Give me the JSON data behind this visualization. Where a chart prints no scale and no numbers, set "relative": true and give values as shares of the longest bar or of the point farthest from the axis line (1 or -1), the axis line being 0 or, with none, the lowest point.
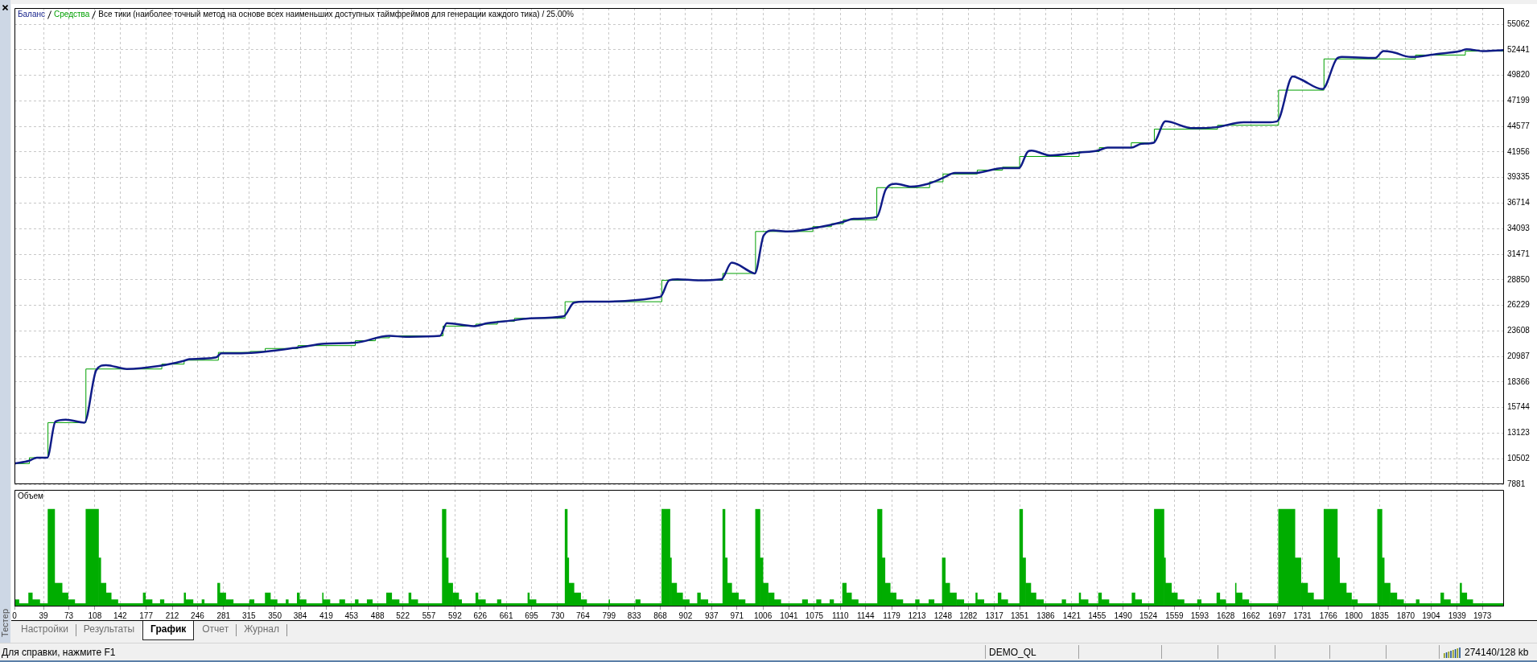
{
  "chart_data": [
    {
      "type": "line",
      "title": "Все тики (наиболее точный метод на основе всех наименьших доступных таймфреймов для генерации каждого тика) / 25.00%",
      "legend": "top left",
      "grid": true,
      "marker": "none",
      "tick_labels": "y",
      "xlim": [
        0,
        2002
      ],
      "xticks": [
        {
          "value": 0,
          "label": null
        },
        {
          "value": 39,
          "label": null
        },
        {
          "value": 73,
          "label": null
        },
        {
          "value": 108,
          "label": null
        },
        {
          "value": 142,
          "label": null
        },
        {
          "value": 177,
          "label": null
        },
        {
          "value": 212,
          "label": null
        },
        {
          "value": 246,
          "label": null
        },
        {
          "value": 281,
          "label": null
        },
        {
          "value": 315,
          "label": null
        },
        {
          "value": 350,
          "label": null
        },
        {
          "value": 384,
          "label": null
        },
        {
          "value": 419,
          "label": null
        },
        {
          "value": 453,
          "label": null
        },
        {
          "value": 488,
          "label": null
        },
        {
          "value": 522,
          "label": null
        },
        {
          "value": 557,
          "label": null
        },
        {
          "value": 592,
          "label": null
        },
        {
          "value": 626,
          "label": null
        },
        {
          "value": 661,
          "label": null
        },
        {
          "value": 695,
          "label": null
        },
        {
          "value": 730,
          "label": null
        },
        {
          "value": 764,
          "label": null
        },
        {
          "value": 799,
          "label": null
        },
        {
          "value": 833,
          "label": null
        },
        {
          "value": 868,
          "label": null
        },
        {
          "value": 902,
          "label": null
        },
        {
          "value": 937,
          "label": null
        },
        {
          "value": 971,
          "label": null
        },
        {
          "value": 1006,
          "label": null
        },
        {
          "value": 1041,
          "label": null
        },
        {
          "value": 1075,
          "label": null
        },
        {
          "value": 1110,
          "label": null
        },
        {
          "value": 1144,
          "label": null
        },
        {
          "value": 1179,
          "label": null
        },
        {
          "value": 1213,
          "label": null
        },
        {
          "value": 1248,
          "label": null
        },
        {
          "value": 1282,
          "label": null
        },
        {
          "value": 1317,
          "label": null
        },
        {
          "value": 1351,
          "label": null
        },
        {
          "value": 1386,
          "label": null
        },
        {
          "value": 1421,
          "label": null
        },
        {
          "value": 1455,
          "label": null
        },
        {
          "value": 1490,
          "label": null
        },
        {
          "value": 1524,
          "label": null
        },
        {
          "value": 1559,
          "label": null
        },
        {
          "value": 1593,
          "label": null
        },
        {
          "value": 1628,
          "label": null
        },
        {
          "value": 1662,
          "label": null
        },
        {
          "value": 1697,
          "label": null
        },
        {
          "value": 1731,
          "label": null
        },
        {
          "value": 1766,
          "label": null
        },
        {
          "value": 1800,
          "label": null
        },
        {
          "value": 1835,
          "label": null
        },
        {
          "value": 1870,
          "label": null
        },
        {
          "value": 1904,
          "label": null
        },
        {
          "value": 1939,
          "label": null
        },
        {
          "value": 1973,
          "label": null
        }
      ],
      "ylim": [
        7881,
        56720
      ],
      "yticks": [
        7881,
        10502,
        13123,
        15744,
        18366,
        20987,
        23608,
        26229,
        28850,
        31471,
        34093,
        36714,
        39335,
        41956,
        44577,
        47199,
        49820,
        52441,
        55062
      ],
      "series": [
        {
          "name": "Баланс",
          "color": "#101c88",
          "x": [
            0,
            20,
            30,
            44,
            55,
            69,
            94,
            110,
            123,
            151,
            194,
            226,
            235,
            271,
            278,
            299,
            381,
            417,
            458,
            504,
            526,
            572,
            581,
            617,
            636,
            672,
            693,
            738,
            752,
            768,
            868,
            880,
            891,
            918,
            950,
            964,
            991,
            995,
            1007,
            1019,
            1041,
            1078,
            1114,
            1128,
            1159,
            1171,
            1185,
            1205,
            1228,
            1248,
            1264,
            1291,
            1328,
            1350,
            1362,
            1367,
            1392,
            1431,
            1456,
            1469,
            1501,
            1515,
            1531,
            1547,
            1583,
            1615,
            1652,
            1683,
            1697,
            1718,
            1729,
            1758,
            1777,
            1784,
            1829,
            1840,
            1852,
            1877,
            1911,
            1943,
            1952,
            1975,
            2002
          ],
          "values": [
            10000,
            10300,
            10600,
            10600,
            14300,
            14500,
            14200,
            19600,
            20100,
            19700,
            20000,
            20500,
            20700,
            20900,
            21300,
            21300,
            21900,
            22300,
            22400,
            23100,
            23000,
            23100,
            24400,
            24100,
            24400,
            24700,
            24900,
            25100,
            26500,
            26600,
            27100,
            28800,
            28900,
            28800,
            28900,
            30600,
            29600,
            29500,
            33400,
            33900,
            33800,
            34200,
            34800,
            35100,
            35300,
            38100,
            38700,
            38400,
            38700,
            39300,
            39800,
            39800,
            40300,
            40300,
            42000,
            42100,
            41600,
            41900,
            42100,
            42400,
            42400,
            42800,
            42900,
            45100,
            44400,
            44500,
            45000,
            45000,
            45100,
            49700,
            49400,
            48400,
            51500,
            51700,
            51600,
            52300,
            52200,
            51700,
            52000,
            52300,
            52500,
            52300,
            52400
          ]
        },
        {
          "name": "Средства",
          "type": "step",
          "color": "#00a000",
          "x": [
            0,
            20,
            45,
            96,
            198,
            228,
            274,
            317,
            337,
            381,
            458,
            485,
            504,
            576,
            620,
            649,
            672,
            740,
            870,
            952,
            996,
            1073,
            1098,
            1114,
            1159,
            1230,
            1248,
            1294,
            1328,
            1351,
            1431,
            1458,
            1501,
            1532,
            1617,
            1699,
            1760,
            1883,
            1950,
            2002
          ],
          "values": [
            10000,
            10600,
            14200,
            19700,
            20200,
            20600,
            21400,
            21500,
            21800,
            22100,
            22600,
            22900,
            23100,
            24100,
            24300,
            24600,
            24900,
            26600,
            28800,
            29500,
            33800,
            34300,
            34600,
            35000,
            38300,
            38900,
            39700,
            40100,
            40400,
            41500,
            42000,
            42400,
            42900,
            44300,
            44700,
            48300,
            51500,
            51900,
            52300,
            52300
          ]
        }
      ]
    },
    {
      "type": "bar",
      "title": "Объем",
      "relative": true,
      "color": "#00ad00",
      "grid": "x",
      "xlim": [
        0,
        2002
      ],
      "xticks": [
        0,
        39,
        73,
        108,
        142,
        177,
        212,
        246,
        281,
        315,
        350,
        384,
        419,
        453,
        488,
        522,
        557,
        592,
        626,
        661,
        695,
        730,
        764,
        799,
        833,
        868,
        902,
        937,
        971,
        1006,
        1041,
        1075,
        1110,
        1144,
        1179,
        1213,
        1248,
        1282,
        1317,
        1351,
        1386,
        1421,
        1455,
        1490,
        1524,
        1559,
        1593,
        1628,
        1662,
        1697,
        1731,
        1766,
        1800,
        1835,
        1870,
        1904,
        1939,
        1973
      ],
      "x": [
        3,
        12.5,
        21.5,
        29,
        39.5,
        49.5,
        59,
        68,
        76.5,
        88.5,
        104.5,
        114.5,
        119.5,
        126.5,
        134.5,
        156,
        174.5,
        180.5,
        190.5,
        198.5,
        214.5,
        229,
        235,
        246,
        253.5,
        264,
        274.5,
        280,
        289,
        305,
        319,
        329.5,
        340.5,
        348.5,
        359,
        366.5,
        374,
        381.5,
        387.5,
        403,
        414.5,
        419.5,
        430.5,
        440.5,
        451,
        460,
        468,
        477.5,
        490.5,
        503.5,
        512,
        523.5,
        531.5,
        537.5,
        558.5,
        577.5,
        581.5,
        586,
        593,
        599,
        610.5,
        621.5,
        628,
        641,
        651.5,
        672,
        691,
        696.5,
        720.5,
        741.5,
        744,
        748.5,
        756.5,
        765,
        784,
        799.5,
        817.5,
        838,
        855.5,
        875.5,
        882,
        886.5,
        894,
        902.5,
        912.5,
        920,
        927,
        942,
        953.5,
        956.5,
        961,
        968.5,
        977.5,
        989,
        999,
        1004,
        1009.5,
        1017,
        1025.5,
        1044.5,
        1062.5,
        1072,
        1081,
        1090,
        1098.5,
        1107,
        1115.5,
        1121.5,
        1129.5,
        1147,
        1163,
        1168,
        1173.5,
        1181,
        1189.5,
        1202.5,
        1213.5,
        1222.5,
        1232.5,
        1241.5,
        1249,
        1254,
        1261.5,
        1271,
        1284,
        1293,
        1298.5,
        1312.5,
        1324,
        1330.5,
        1343,
        1353,
        1357,
        1362.5,
        1369.5,
        1378,
        1395.5,
        1410.5,
        1422,
        1432,
        1438,
        1450,
        1459,
        1466,
        1486.5,
        1504,
        1510.5,
        1523.5,
        1538.5,
        1546,
        1551,
        1559,
        1567.5,
        1581,
        1592.5,
        1605.5,
        1618,
        1624,
        1634.5,
        1641.5,
        1646,
        1654.5,
        1679,
        1710,
        1725,
        1733.5,
        1742,
        1753,
        1769,
        1779.5,
        1785.5,
        1793.5,
        1801,
        1818.5,
        1835,
        1839.5,
        1845,
        1853.5,
        1862.5,
        1875.5,
        1886,
        1902.5,
        1919,
        1925.5,
        1936.5,
        1944,
        1948.5,
        1956,
        1981
      ],
      "values": [
        0.07,
        0.03,
        0.14,
        0.07,
        0.03,
        1,
        0.24,
        0.14,
        0.07,
        0.03,
        1,
        0.5,
        0.24,
        0.14,
        0.07,
        0.03,
        0.14,
        0.07,
        0.03,
        0.07,
        0.03,
        0.14,
        0.07,
        0.03,
        0.07,
        0.03,
        0.24,
        0.14,
        0.07,
        0.03,
        0.07,
        0.03,
        0.14,
        0.07,
        0.03,
        0.07,
        0.03,
        0.14,
        0.07,
        0.03,
        0.14,
        0.07,
        0.03,
        0.07,
        0.03,
        0.07,
        0.03,
        0.07,
        0.03,
        0.14,
        0.07,
        0.03,
        0.14,
        0.07,
        0.03,
        1,
        0.5,
        0.24,
        0.14,
        0.07,
        0.03,
        0.14,
        0.07,
        0.03,
        0.07,
        0.03,
        0.14,
        0.07,
        0.03,
        1,
        0.5,
        0.24,
        0.14,
        0.07,
        0.03,
        0.07,
        0.03,
        0.07,
        0.03,
        1,
        0.5,
        0.24,
        0.14,
        0.07,
        0.03,
        0.14,
        0.07,
        0.03,
        1,
        0.5,
        0.24,
        0.14,
        0.07,
        0.03,
        1,
        0.5,
        0.24,
        0.14,
        0.07,
        0.03,
        0.07,
        0.03,
        0.07,
        0.03,
        0.07,
        0.03,
        0.24,
        0.14,
        0.07,
        0.03,
        1,
        0.5,
        0.24,
        0.14,
        0.07,
        0.03,
        0.07,
        0.03,
        0.07,
        0.03,
        0.5,
        0.24,
        0.14,
        0.07,
        0.03,
        0.14,
        0.07,
        0.03,
        0.14,
        0.07,
        0.03,
        1,
        0.5,
        0.24,
        0.14,
        0.07,
        0.03,
        0.07,
        0.03,
        0.14,
        0.07,
        0.03,
        0.14,
        0.07,
        0.03,
        0.14,
        0.07,
        0.03,
        1,
        0.5,
        0.24,
        0.14,
        0.07,
        0.03,
        0.07,
        0.03,
        0.14,
        0.07,
        0.03,
        0.24,
        0.14,
        0.07,
        0.03,
        1,
        0.5,
        0.24,
        0.14,
        0.07,
        1,
        0.5,
        0.24,
        0.14,
        0.07,
        0.03,
        1,
        0.5,
        0.24,
        0.14,
        0.07,
        0.03,
        0.07,
        0.03,
        0.14,
        0.07,
        0.03,
        0.24,
        0.14,
        0.07,
        0.03
      ],
      "annotations": [
        "Настройки",
        "Результаты",
        "График",
        "Отчет",
        "Журнал",
        "Тестер",
        "Для справки, нажмите F1",
        "DEMO_QL",
        "274140/128 kb"
      ]
    }
  ]
}
